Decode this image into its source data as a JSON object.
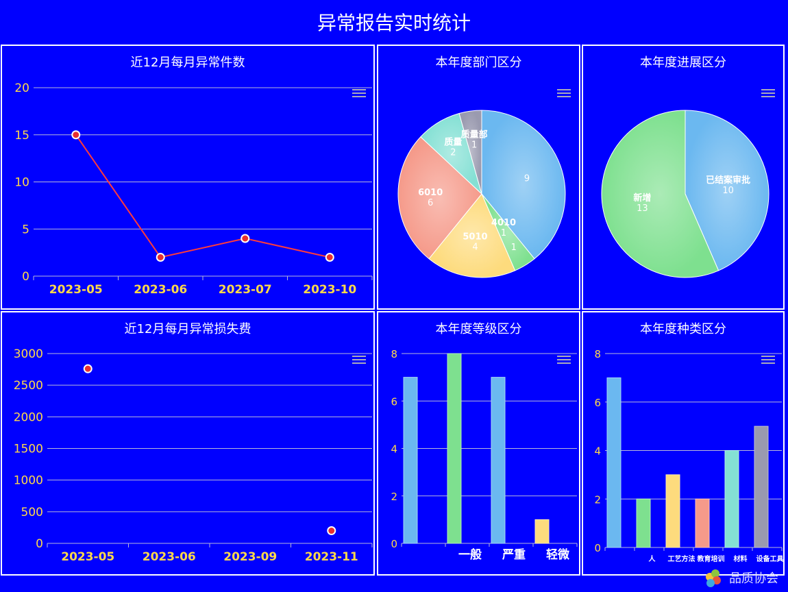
{
  "page": {
    "title": "异常报告实时统计"
  },
  "colors": {
    "background": "#0000FF",
    "axis_text": "#ffd94a",
    "line": "#ff3b3b",
    "point": "#e83030",
    "palette": [
      "#6bb8f0",
      "#7ee08f",
      "#fddb7d",
      "#f59a8a",
      "#84e0d4",
      "#9a9aaf"
    ]
  },
  "chart_data": [
    {
      "id": "monthly-count",
      "type": "line",
      "title": "近12月每月异常件数",
      "categories": [
        "2023-05",
        "2023-06",
        "2023-07",
        "2023-10"
      ],
      "values": [
        15,
        2,
        4,
        2
      ],
      "ylim": [
        0,
        20
      ],
      "yticks": [
        "0",
        "5",
        "10",
        "15",
        "20"
      ],
      "grid": true
    },
    {
      "id": "dept-pie",
      "type": "pie",
      "title": "本年度部门区分",
      "slices": [
        {
          "label": "",
          "value": 9
        },
        {
          "label": "",
          "value": 1
        },
        {
          "label": "5010",
          "value": 4
        },
        {
          "label": "6010",
          "value": 6
        },
        {
          "label": "质量",
          "value": 2
        },
        {
          "label": "质量部",
          "value": 1
        }
      ],
      "extra_labels": [
        {
          "label": "4010",
          "value": 1
        }
      ]
    },
    {
      "id": "progress-pie",
      "type": "pie",
      "title": "本年度进展区分",
      "slices": [
        {
          "label": "已结案审批",
          "value": 10
        },
        {
          "label": "新增",
          "value": 13
        }
      ]
    },
    {
      "id": "monthly-loss",
      "type": "scatter",
      "title": "近12月每月异常损失费",
      "categories": [
        "2023-05",
        "2023-06",
        "2023-09",
        "2023-11"
      ],
      "values": [
        2760,
        null,
        null,
        200
      ],
      "ylim": [
        0,
        3000
      ],
      "yticks": [
        "0",
        "500",
        "1000",
        "1500",
        "2000",
        "2500",
        "3000"
      ],
      "grid": true
    },
    {
      "id": "level-bar",
      "type": "bar",
      "title": "本年度等级区分",
      "categories": [
        "",
        "一般",
        "严重",
        "轻微"
      ],
      "values": [
        7,
        8,
        7,
        1
      ],
      "ylim": [
        0,
        8
      ],
      "yticks": [
        "0",
        "2",
        "4",
        "6",
        "8"
      ],
      "grid": true
    },
    {
      "id": "type-bar",
      "type": "bar",
      "title": "本年度种类区分",
      "categories": [
        "",
        "人",
        "工艺方法",
        "教育培训",
        "材料",
        "设备工具"
      ],
      "values": [
        7,
        2,
        3,
        2,
        4,
        5
      ],
      "ylim": [
        0,
        8
      ],
      "yticks": [
        "0",
        "2",
        "4",
        "6",
        "8"
      ],
      "grid": true
    }
  ],
  "watermark": {
    "text": "品质协会"
  }
}
